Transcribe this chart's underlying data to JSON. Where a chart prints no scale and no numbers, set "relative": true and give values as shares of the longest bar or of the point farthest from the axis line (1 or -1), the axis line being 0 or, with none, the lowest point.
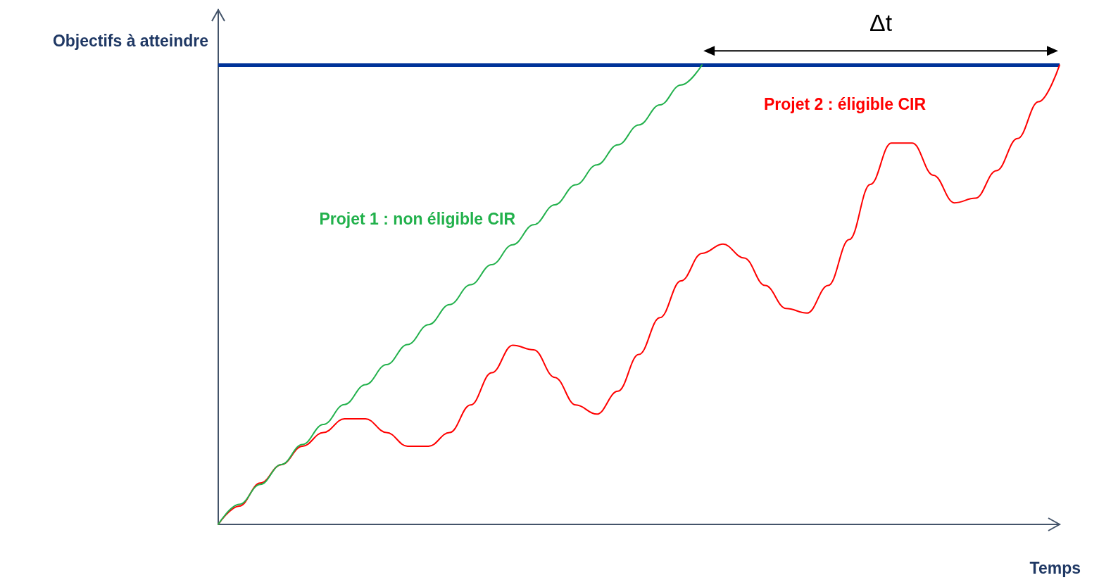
{
  "chart_data": {
    "type": "line",
    "relative": true,
    "xlabel": "Temps",
    "ylabel": "Objectifs à atteindre",
    "categories": [
      null,
      null,
      null,
      null,
      null,
      null,
      null,
      null,
      null,
      null,
      null,
      null,
      null,
      null,
      null,
      null,
      null,
      null,
      null,
      null,
      null,
      null,
      null,
      null,
      null,
      null,
      null,
      null,
      null,
      null,
      null,
      null,
      null,
      null,
      null,
      null,
      null,
      null,
      null,
      null,
      null
    ],
    "series": [
      {
        "name": "Projet 1 : non éligible CIR",
        "color": "#22b14c",
        "values": [
          0,
          0.0435,
          0.087,
          0.1304,
          0.1739,
          0.2174,
          0.2609,
          0.3043,
          0.3478,
          0.3913,
          0.4348,
          0.4783,
          0.5217,
          0.5652,
          0.6087,
          0.6522,
          0.6957,
          0.7391,
          0.7826,
          0.8261,
          0.8696,
          0.913,
          0.9565,
          1.0,
          null,
          null,
          null,
          null,
          null,
          null,
          null,
          null,
          null,
          null,
          null,
          null,
          null,
          null,
          null,
          null,
          null
        ]
      },
      {
        "name": "Projet 2 : éligible CIR",
        "color": "#ff0000",
        "values": [
          0,
          0.04,
          0.09,
          0.13,
          0.17,
          0.2,
          0.23,
          0.23,
          0.2,
          0.17,
          0.17,
          0.2,
          0.26,
          0.33,
          0.39,
          0.38,
          0.32,
          0.26,
          0.24,
          0.29,
          0.37,
          0.45,
          0.53,
          0.59,
          0.61,
          0.58,
          0.52,
          0.47,
          0.46,
          0.52,
          0.62,
          0.74,
          0.83,
          0.83,
          0.76,
          0.7,
          0.71,
          0.77,
          0.84,
          0.92,
          1.0
        ]
      }
    ],
    "ref_lines": [
      {
        "axis": "y",
        "value": 1,
        "color": "#003399",
        "label": null
      }
    ],
    "annotations": [
      "Δt"
    ],
    "grid": false,
    "legend": false,
    "marker": "none",
    "line_style": "solid"
  }
}
